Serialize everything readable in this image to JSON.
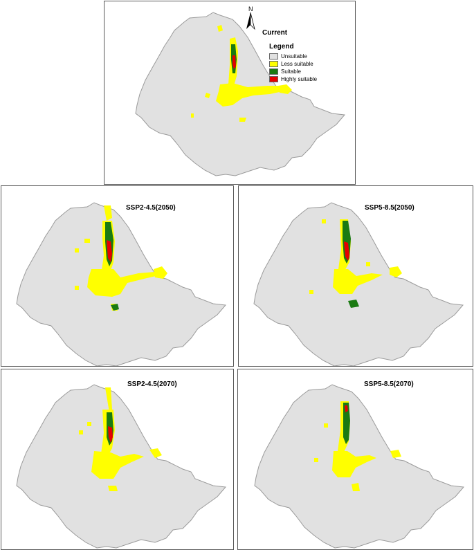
{
  "panels": {
    "current": "Current",
    "ssp245_2050": "SSP2-4.5(2050)",
    "ssp585_2050": "SSP5-8.5(2050)",
    "ssp245_2070": "SSP2-4.5(2070)",
    "ssp585_2070": "SSP5-8.5(2070)"
  },
  "legend": {
    "title": "Legend",
    "items": [
      {
        "label": "Unsuitable",
        "color": "#e1e1e1"
      },
      {
        "label": "Less suitable",
        "color": "#ffff00"
      },
      {
        "label": "Suitable",
        "color": "#1a7a12"
      },
      {
        "label": "Highly suitable",
        "color": "#e60000"
      }
    ]
  },
  "north_label": "N",
  "colors": {
    "unsuitable": "#e1e1e1",
    "less_suitable": "#ffff00",
    "suitable": "#1a7a12",
    "highly_suitable": "#e60000",
    "border": "#9a9a9a"
  }
}
